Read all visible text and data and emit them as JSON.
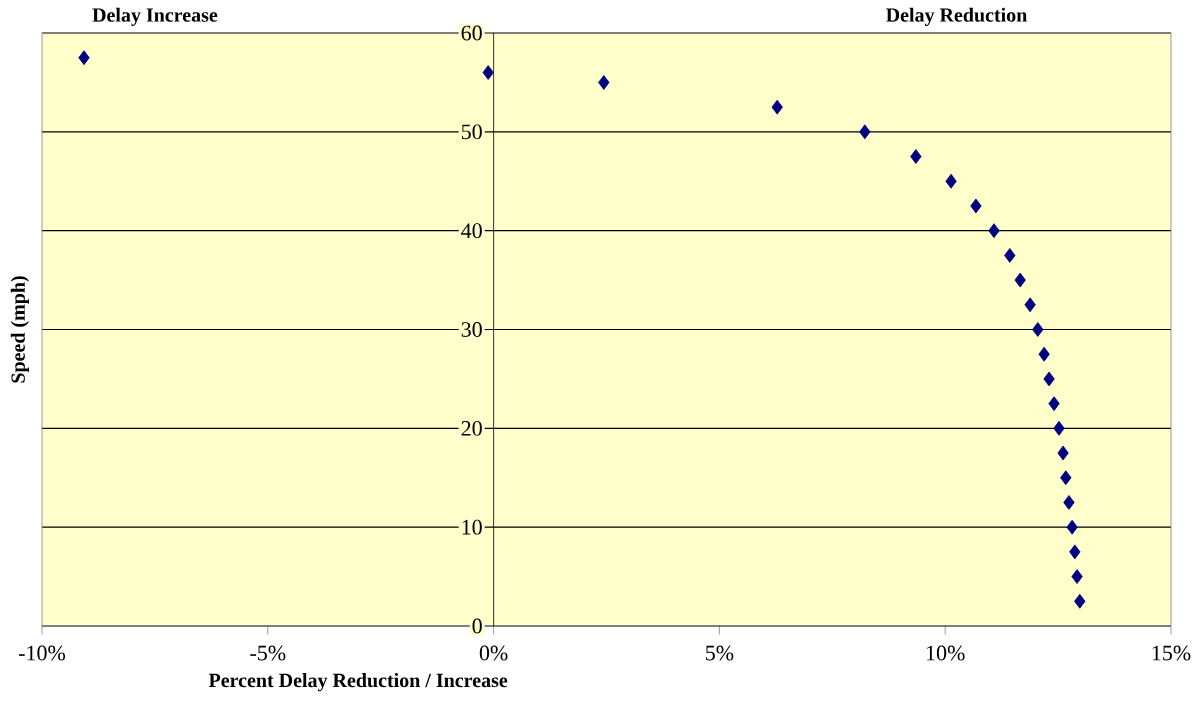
{
  "chart_data": {
    "type": "scatter",
    "xlabel": "Percent Delay Reduction / Increase",
    "ylabel": "Speed (mph)",
    "annotations": [
      "Delay Increase",
      "Delay Reduction"
    ],
    "x": [
      -9.07,
      -0.12,
      2.44,
      6.28,
      8.22,
      9.35,
      10.13,
      10.68,
      11.08,
      11.43,
      11.66,
      11.88,
      12.05,
      12.19,
      12.3,
      12.41,
      12.52,
      12.61,
      12.67,
      12.74,
      12.81,
      12.87,
      12.92,
      12.98
    ],
    "values": [
      57.5,
      56,
      55,
      52.5,
      50,
      47.5,
      45,
      42.5,
      40,
      37.5,
      35,
      32.5,
      30,
      27.5,
      25,
      22.5,
      20,
      17.5,
      15,
      12.5,
      10,
      7.5,
      5,
      2.5
    ],
    "color": "#000080",
    "marker": "diamond",
    "grid": "y",
    "xlim": [
      -10,
      15
    ],
    "xticks": [
      {
        "value": -10,
        "label": "-10%"
      },
      {
        "value": -5,
        "label": "-5%"
      },
      {
        "value": 0,
        "label": "0%"
      },
      {
        "value": 5,
        "label": "5%"
      },
      {
        "value": 10,
        "label": "10%"
      },
      {
        "value": 15,
        "label": "15%"
      }
    ],
    "ylim": [
      0,
      60
    ],
    "yticks": [
      0,
      10,
      20,
      30,
      40,
      50,
      60
    ]
  }
}
